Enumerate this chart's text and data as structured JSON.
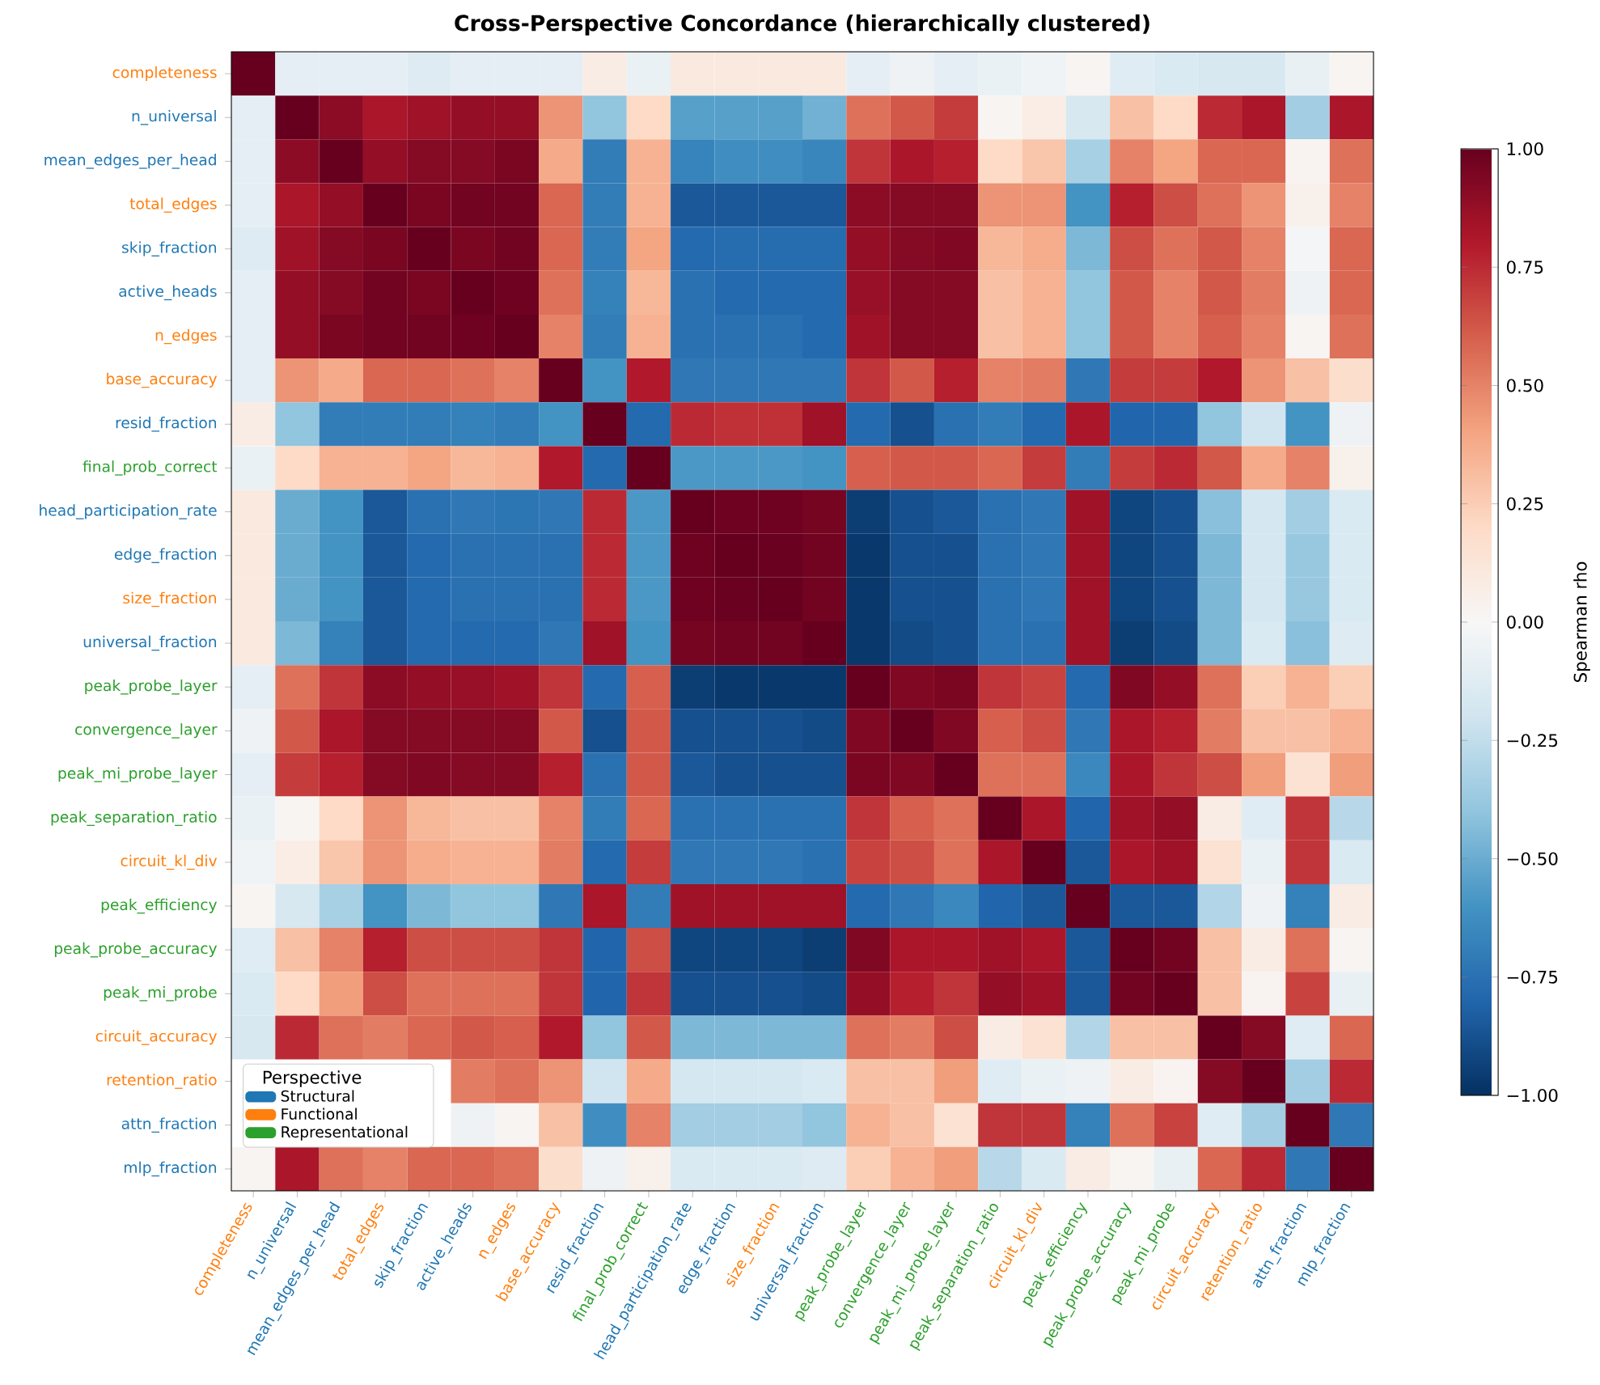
{
  "chart_data": {
    "type": "heatmap",
    "title": "Cross-Perspective Concordance (hierarchically clustered)",
    "categories": [
      "completeness",
      "n_universal",
      "mean_edges_per_head",
      "total_edges",
      "skip_fraction",
      "active_heads",
      "n_edges",
      "base_accuracy",
      "resid_fraction",
      "final_prob_correct",
      "head_participation_rate",
      "edge_fraction",
      "size_fraction",
      "universal_fraction",
      "peak_probe_layer",
      "convergence_layer",
      "peak_mi_probe_layer",
      "peak_separation_ratio",
      "circuit_kl_div",
      "peak_efficiency",
      "peak_probe_accuracy",
      "peak_mi_probe",
      "circuit_accuracy",
      "retention_ratio",
      "attn_fraction",
      "mlp_fraction"
    ],
    "y_categories": [
      "completeness",
      "n_universal",
      "mean_edges_per_head",
      "total_edges",
      "skip_fraction",
      "active_heads",
      "n_edges",
      "base_accuracy",
      "resid_fraction",
      "final_prob_correct",
      "head_participation_rate",
      "edge_fraction",
      "size_fraction",
      "universal_fraction",
      "peak_probe_layer",
      "convergence_layer",
      "peak_mi_probe_layer",
      "peak_separation_ratio",
      "circuit_kl_div",
      "peak_efficiency",
      "peak_probe_accuracy",
      "peak_mi_probe",
      "circuit_accuracy",
      "retention_ratio",
      "attn_fraction",
      "mlp_fraction"
    ],
    "cells": [
      [
        1,
        -0.1,
        -0.1,
        -0.1,
        -0.13,
        -0.1,
        -0.1,
        -0.1,
        0.08,
        -0.07,
        0.1,
        0.1,
        0.1,
        0.1,
        -0.1,
        -0.05,
        -0.1,
        -0.07,
        -0.04,
        0.02,
        -0.12,
        -0.15,
        -0.17,
        -0.17,
        -0.08,
        0.02
      ],
      [
        -0.1,
        1,
        0.9,
        0.82,
        0.85,
        0.88,
        0.88,
        0.45,
        -0.4,
        0.2,
        -0.55,
        -0.55,
        -0.55,
        -0.48,
        0.55,
        0.62,
        0.7,
        0.02,
        0.07,
        -0.17,
        0.3,
        0.2,
        0.75,
        0.82,
        -0.35,
        0.82
      ],
      [
        -0.1,
        0.9,
        1,
        0.88,
        0.92,
        0.92,
        0.95,
        0.38,
        -0.7,
        0.35,
        -0.67,
        -0.62,
        -0.62,
        -0.66,
        0.72,
        0.82,
        0.78,
        0.2,
        0.28,
        -0.33,
        0.5,
        0.4,
        0.58,
        0.58,
        0.03,
        0.55
      ],
      [
        -0.1,
        0.82,
        0.88,
        1,
        0.95,
        0.97,
        0.97,
        0.58,
        -0.7,
        0.35,
        -0.85,
        -0.85,
        -0.85,
        -0.85,
        0.9,
        0.92,
        0.92,
        0.45,
        0.45,
        -0.6,
        0.78,
        0.65,
        0.55,
        0.45,
        0.05,
        0.5
      ],
      [
        -0.13,
        0.85,
        0.92,
        0.95,
        1,
        0.95,
        0.97,
        0.58,
        -0.7,
        0.4,
        -0.78,
        -0.77,
        -0.77,
        -0.77,
        0.88,
        0.92,
        0.93,
        0.33,
        0.37,
        -0.45,
        0.65,
        0.55,
        0.62,
        0.5,
        -0.02,
        0.58
      ],
      [
        -0.1,
        0.88,
        0.92,
        0.97,
        0.95,
        1,
        0.98,
        0.55,
        -0.68,
        0.33,
        -0.75,
        -0.78,
        -0.78,
        -0.78,
        0.87,
        0.92,
        0.92,
        0.3,
        0.35,
        -0.4,
        0.62,
        0.5,
        0.62,
        0.52,
        -0.05,
        0.58
      ],
      [
        -0.1,
        0.88,
        0.95,
        0.97,
        0.97,
        0.98,
        1,
        0.5,
        -0.7,
        0.35,
        -0.75,
        -0.75,
        -0.75,
        -0.78,
        0.85,
        0.92,
        0.92,
        0.3,
        0.35,
        -0.4,
        0.62,
        0.5,
        0.6,
        0.5,
        0.02,
        0.55
      ],
      [
        -0.1,
        0.45,
        0.38,
        0.58,
        0.58,
        0.55,
        0.5,
        1,
        -0.6,
        0.8,
        -0.72,
        -0.72,
        -0.72,
        -0.72,
        0.72,
        0.62,
        0.78,
        0.5,
        0.52,
        -0.72,
        0.7,
        0.7,
        0.8,
        0.45,
        0.3,
        0.18
      ],
      [
        0.08,
        -0.4,
        -0.7,
        -0.7,
        -0.7,
        -0.68,
        -0.7,
        -0.6,
        1,
        -0.78,
        0.75,
        0.73,
        0.73,
        0.85,
        -0.78,
        -0.88,
        -0.75,
        -0.7,
        -0.78,
        0.82,
        -0.8,
        -0.8,
        -0.4,
        -0.2,
        -0.6,
        -0.05
      ],
      [
        -0.07,
        0.2,
        0.35,
        0.35,
        0.4,
        0.33,
        0.35,
        0.8,
        -0.78,
        1,
        -0.58,
        -0.58,
        -0.58,
        -0.6,
        0.6,
        0.62,
        0.62,
        0.58,
        0.7,
        -0.7,
        0.7,
        0.75,
        0.62,
        0.38,
        0.5,
        0.05
      ],
      [
        0.1,
        -0.5,
        -0.6,
        -0.85,
        -0.75,
        -0.72,
        -0.73,
        -0.72,
        0.75,
        -0.58,
        1,
        0.98,
        0.98,
        0.96,
        -0.95,
        -0.88,
        -0.85,
        -0.75,
        -0.72,
        0.85,
        -0.92,
        -0.88,
        -0.42,
        -0.18,
        -0.35,
        -0.15
      ],
      [
        0.1,
        -0.5,
        -0.6,
        -0.85,
        -0.78,
        -0.75,
        -0.75,
        -0.75,
        0.75,
        -0.58,
        0.98,
        1,
        0.99,
        0.97,
        -0.97,
        -0.88,
        -0.88,
        -0.75,
        -0.72,
        0.85,
        -0.92,
        -0.88,
        -0.45,
        -0.18,
        -0.38,
        -0.15
      ],
      [
        0.1,
        -0.5,
        -0.6,
        -0.85,
        -0.78,
        -0.75,
        -0.75,
        -0.75,
        0.75,
        -0.58,
        0.98,
        0.99,
        1,
        0.97,
        -0.97,
        -0.88,
        -0.88,
        -0.75,
        -0.72,
        0.85,
        -0.92,
        -0.88,
        -0.45,
        -0.18,
        -0.38,
        -0.15
      ],
      [
        0.1,
        -0.45,
        -0.68,
        -0.85,
        -0.78,
        -0.78,
        -0.78,
        -0.72,
        0.85,
        -0.6,
        0.96,
        0.97,
        0.97,
        1,
        -0.97,
        -0.9,
        -0.88,
        -0.75,
        -0.75,
        0.85,
        -0.95,
        -0.9,
        -0.45,
        -0.15,
        -0.42,
        -0.13
      ],
      [
        -0.1,
        0.55,
        0.72,
        0.9,
        0.88,
        0.87,
        0.85,
        0.72,
        -0.78,
        0.6,
        -0.95,
        -0.97,
        -0.97,
        -0.97,
        1,
        0.93,
        0.95,
        0.72,
        0.68,
        -0.78,
        0.93,
        0.88,
        0.55,
        0.25,
        0.35,
        0.25
      ],
      [
        -0.05,
        0.62,
        0.82,
        0.92,
        0.92,
        0.92,
        0.92,
        0.62,
        -0.88,
        0.62,
        -0.88,
        -0.88,
        -0.88,
        -0.9,
        0.93,
        1,
        0.93,
        0.6,
        0.65,
        -0.72,
        0.82,
        0.78,
        0.52,
        0.3,
        0.3,
        0.35
      ],
      [
        -0.1,
        0.7,
        0.78,
        0.92,
        0.93,
        0.92,
        0.92,
        0.78,
        -0.75,
        0.62,
        -0.85,
        -0.88,
        -0.88,
        -0.88,
        0.95,
        0.93,
        1,
        0.55,
        0.55,
        -0.65,
        0.82,
        0.72,
        0.65,
        0.42,
        0.15,
        0.42
      ],
      [
        -0.07,
        0.02,
        0.2,
        0.45,
        0.33,
        0.3,
        0.3,
        0.5,
        -0.7,
        0.58,
        -0.75,
        -0.75,
        -0.75,
        -0.75,
        0.72,
        0.6,
        0.55,
        1,
        0.82,
        -0.8,
        0.85,
        0.88,
        0.08,
        -0.12,
        0.72,
        -0.28
      ],
      [
        -0.04,
        0.07,
        0.28,
        0.45,
        0.37,
        0.35,
        0.35,
        0.52,
        -0.78,
        0.7,
        -0.72,
        -0.72,
        -0.72,
        -0.75,
        0.68,
        0.65,
        0.55,
        0.82,
        1,
        -0.85,
        0.82,
        0.85,
        0.15,
        -0.07,
        0.72,
        -0.15
      ],
      [
        0.02,
        -0.17,
        -0.33,
        -0.6,
        -0.45,
        -0.4,
        -0.4,
        -0.72,
        0.82,
        -0.7,
        0.85,
        0.85,
        0.85,
        0.85,
        -0.78,
        -0.72,
        -0.65,
        -0.8,
        -0.85,
        1,
        -0.85,
        -0.85,
        -0.3,
        -0.05,
        -0.68,
        0.08
      ],
      [
        -0.12,
        0.3,
        0.5,
        0.78,
        0.65,
        0.65,
        0.65,
        0.72,
        -0.8,
        0.65,
        -0.92,
        -0.92,
        -0.92,
        -0.95,
        0.93,
        0.82,
        0.82,
        0.85,
        0.82,
        -0.85,
        1,
        0.97,
        0.3,
        0.08,
        0.55,
        0.02
      ],
      [
        -0.15,
        0.2,
        0.42,
        0.65,
        0.55,
        0.55,
        0.55,
        0.72,
        -0.8,
        0.72,
        -0.88,
        -0.88,
        -0.88,
        -0.9,
        0.88,
        0.78,
        0.72,
        0.88,
        0.85,
        -0.85,
        0.97,
        1,
        0.3,
        0.03,
        0.68,
        -0.08
      ],
      [
        -0.17,
        0.75,
        0.55,
        0.52,
        0.58,
        0.62,
        0.6,
        0.8,
        -0.4,
        0.62,
        -0.45,
        -0.45,
        -0.45,
        -0.45,
        0.55,
        0.52,
        0.65,
        0.08,
        0.15,
        -0.3,
        0.3,
        0.3,
        1,
        0.92,
        -0.12,
        0.58
      ],
      [
        null,
        null,
        null,
        null,
        null,
        0.52,
        0.55,
        0.45,
        -0.2,
        0.38,
        -0.18,
        -0.18,
        -0.18,
        -0.15,
        0.3,
        0.3,
        0.42,
        -0.12,
        -0.07,
        -0.05,
        0.08,
        0.03,
        0.92,
        1,
        -0.35,
        0.75
      ],
      [
        null,
        null,
        null,
        null,
        null,
        -0.05,
        0.02,
        0.3,
        -0.62,
        0.5,
        -0.35,
        -0.35,
        -0.35,
        -0.4,
        0.35,
        0.3,
        0.15,
        0.72,
        0.72,
        -0.68,
        0.55,
        0.68,
        -0.12,
        -0.35,
        1,
        -0.72
      ],
      [
        0.02,
        0.82,
        0.55,
        0.5,
        0.58,
        0.58,
        0.55,
        0.18,
        -0.05,
        0.05,
        -0.15,
        -0.15,
        -0.15,
        -0.13,
        0.25,
        0.35,
        0.42,
        -0.28,
        -0.15,
        0.08,
        0.02,
        -0.08,
        0.58,
        0.75,
        -0.72,
        1
      ]
    ],
    "clim": [
      -1,
      1
    ],
    "cticks": [
      {
        "value": -1,
        "label": "−1.00"
      },
      {
        "value": -0.75,
        "label": "−0.75"
      },
      {
        "value": -0.5,
        "label": "−0.50"
      },
      {
        "value": -0.25,
        "label": "−0.25"
      },
      {
        "value": 0,
        "label": "0.00"
      },
      {
        "value": 0.25,
        "label": "0.25"
      },
      {
        "value": 0.5,
        "label": "0.50"
      },
      {
        "value": 0.75,
        "label": "0.75"
      },
      {
        "value": 1,
        "label": "1.00"
      }
    ],
    "clabel": "Spearman rho",
    "legend": "bottom left",
    "legend_title": "Perspective",
    "colors": [
      "#ff7f0e",
      "#1f77b4",
      "#1f77b4",
      "#ff7f0e",
      "#1f77b4",
      "#1f77b4",
      "#ff7f0e",
      "#ff7f0e",
      "#1f77b4",
      "#2ca02c",
      "#1f77b4",
      "#1f77b4",
      "#ff7f0e",
      "#1f77b4",
      "#2ca02c",
      "#2ca02c",
      "#2ca02c",
      "#2ca02c",
      "#ff7f0e",
      "#2ca02c",
      "#2ca02c",
      "#2ca02c",
      "#ff7f0e",
      "#ff7f0e",
      "#1f77b4",
      "#1f77b4"
    ],
    "series": [
      {
        "name": "Structural",
        "color": "#1f77b4",
        "values": [
          null,
          null,
          null,
          null,
          null,
          null,
          null,
          null,
          null,
          null,
          null,
          null,
          null,
          null,
          null,
          null,
          null,
          null,
          null,
          null,
          null,
          null,
          null,
          null,
          null,
          null
        ]
      },
      {
        "name": "Functional",
        "color": "#ff7f0e",
        "values": [
          null,
          null,
          null,
          null,
          null,
          null,
          null,
          null,
          null,
          null,
          null,
          null,
          null,
          null,
          null,
          null,
          null,
          null,
          null,
          null,
          null,
          null,
          null,
          null,
          null,
          null
        ]
      },
      {
        "name": "Representational",
        "color": "#2ca02c",
        "values": [
          null,
          null,
          null,
          null,
          null,
          null,
          null,
          null,
          null,
          null,
          null,
          null,
          null,
          null,
          null,
          null,
          null,
          null,
          null,
          null,
          null,
          null,
          null,
          null,
          null,
          null
        ]
      }
    ]
  }
}
